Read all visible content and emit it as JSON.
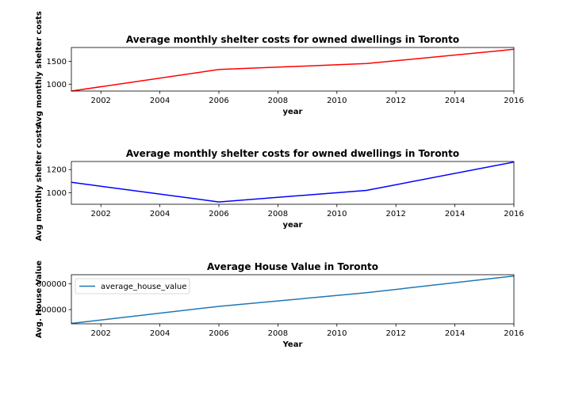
{
  "chart_data": [
    {
      "type": "line",
      "title": "Average monthly shelter costs for owned dwellings in Toronto",
      "xlabel": "year",
      "ylabel": "Avg monthly shelter costs",
      "xlim": [
        2001,
        2016
      ],
      "ylim": [
        850,
        1800
      ],
      "xticks": [
        2002,
        2004,
        2006,
        2008,
        2010,
        2012,
        2014,
        2016
      ],
      "yticks": [
        1000,
        1500
      ],
      "ytick_labels": [
        "1000",
        "1500"
      ],
      "grid": false,
      "series": [
        {
          "color": "#ff0000",
          "x": [
            2001,
            2006,
            2011,
            2016
          ],
          "y": [
            850,
            1320,
            1450,
            1760
          ]
        }
      ]
    },
    {
      "type": "line",
      "title": "Average monthly shelter costs for owned dwellings in Toronto",
      "xlabel": "year",
      "ylabel": "Avg monthly shelter costs",
      "xlim": [
        2001,
        2016
      ],
      "ylim": [
        900,
        1270
      ],
      "xticks": [
        2002,
        2004,
        2006,
        2008,
        2010,
        2012,
        2014,
        2016
      ],
      "yticks": [
        1000,
        1200
      ],
      "ytick_labels": [
        "1000",
        "1200"
      ],
      "grid": false,
      "series": [
        {
          "color": "#0000ff",
          "x": [
            2001,
            2006,
            2011,
            2016
          ],
          "y": [
            1090,
            920,
            1020,
            1265
          ]
        }
      ]
    },
    {
      "type": "line",
      "title": "Average House Value in Toronto",
      "xlabel": "Year",
      "ylabel": "Avg. House Value",
      "xlim": [
        2001,
        2016
      ],
      "ylim": [
        290000,
        670000
      ],
      "xticks": [
        2002,
        2004,
        2006,
        2008,
        2010,
        2012,
        2014,
        2016
      ],
      "yticks": [
        400000,
        600000
      ],
      "ytick_labels": [
        "400000",
        "600000"
      ],
      "grid": false,
      "legend": "upper-left",
      "series": [
        {
          "name": "average_house_value",
          "color": "#1f77b4",
          "x": [
            2001,
            2006,
            2011,
            2016
          ],
          "y": [
            293000,
            425000,
            530000,
            660000
          ]
        }
      ]
    }
  ]
}
